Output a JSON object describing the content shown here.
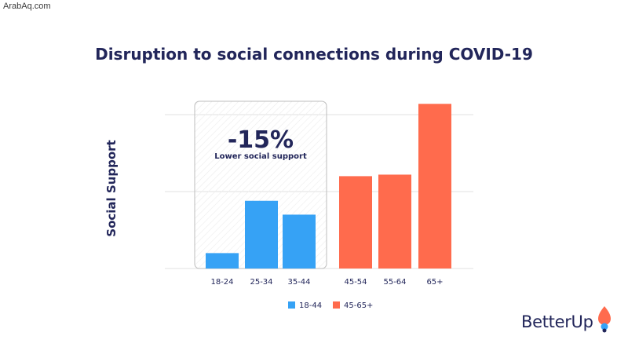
{
  "watermark": "ArabAq.com",
  "chart_data": {
    "type": "bar",
    "title": "Disruption to social connections during COVID-19",
    "ylabel": "Social Support",
    "xlabel": "",
    "categories": [
      "18-24",
      "25-34",
      "35-44",
      "45-54",
      "55-64",
      "65+"
    ],
    "series": [
      {
        "name": "18-44",
        "color": "#36a2f5",
        "values": [
          10,
          44,
          35,
          null,
          null,
          null
        ]
      },
      {
        "name": "45-65+",
        "color": "#ff6b4d",
        "values": [
          null,
          null,
          null,
          60,
          61,
          107
        ]
      }
    ],
    "ylim": [
      0,
      100
    ],
    "yticks": [
      0,
      50,
      100
    ],
    "grid": true,
    "legend_position": "bottom",
    "annotation": {
      "value": "-15%",
      "text": "Lower social support",
      "categories": [
        "18-24",
        "25-34",
        "35-44"
      ]
    }
  },
  "brand": {
    "name": "BetterUp",
    "logo_icon": "drop-icon",
    "logo_colors": [
      "#ff6b4d",
      "#36a2f5",
      "#22265a"
    ]
  }
}
